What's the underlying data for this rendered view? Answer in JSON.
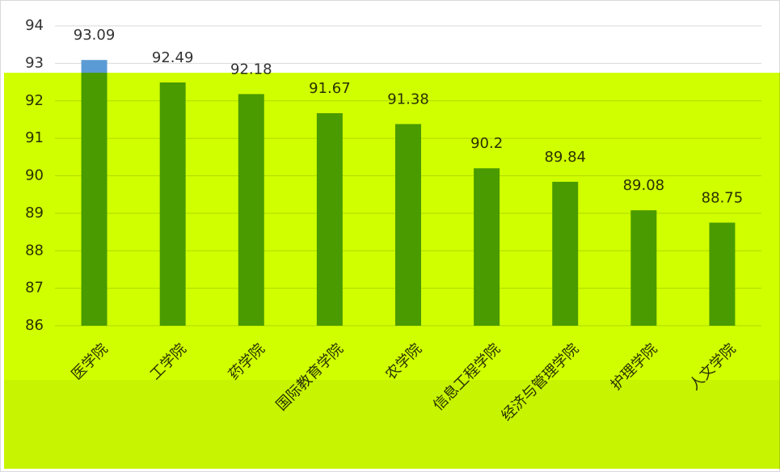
{
  "chart_data": {
    "type": "bar",
    "categories": [
      "医学院",
      "工学院",
      "药学院",
      "国际教育学院",
      "农学院",
      "信息工程学院",
      "经济与管理学院",
      "护理学院",
      "人文学院"
    ],
    "values": [
      93.09,
      92.49,
      92.18,
      91.67,
      91.38,
      90.2,
      89.84,
      89.08,
      88.75
    ],
    "color": "#5b9bd5",
    "ylim": [
      86,
      94
    ],
    "yticks": [
      86,
      87,
      88,
      89,
      90,
      91,
      92,
      93,
      94
    ],
    "grid": true
  }
}
